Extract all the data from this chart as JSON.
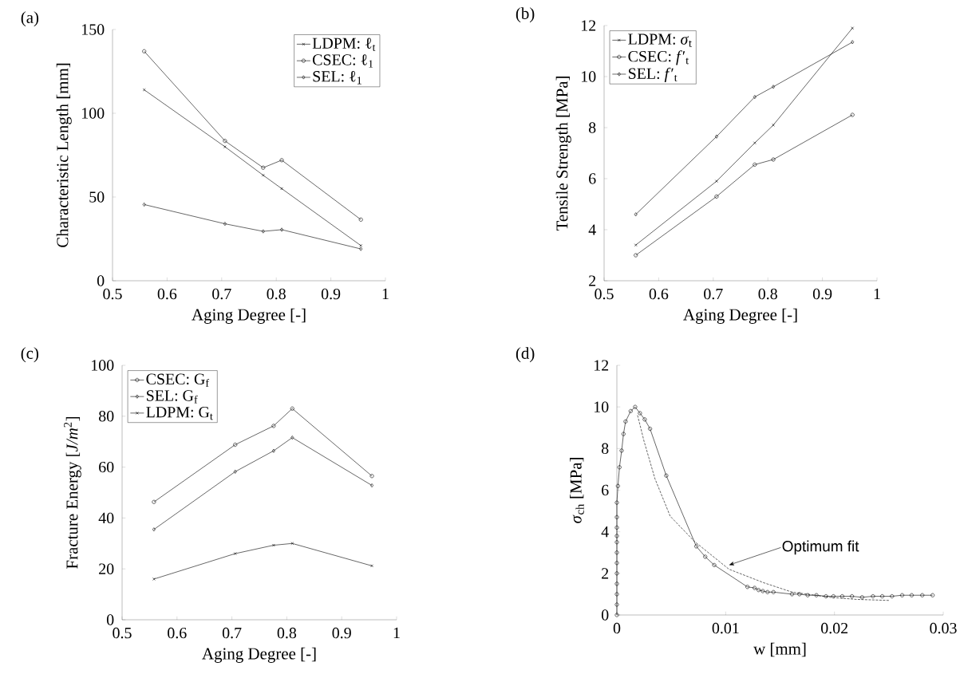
{
  "chart_data": [
    {
      "type": "line",
      "title": "(a)",
      "xlabel": "Aging Degree [-]",
      "ylabel": "Characteristic Length [mm]",
      "x": [
        0.558,
        0.706,
        0.776,
        0.81,
        0.955
      ],
      "xlim": [
        0.5,
        1
      ],
      "xticks": [
        0.5,
        0.6,
        0.7,
        0.8,
        0.9,
        1
      ],
      "ylim": [
        0,
        150
      ],
      "yticks": [
        0,
        50,
        100,
        150
      ],
      "legend": "top right",
      "line_style": "solid",
      "series": [
        {
          "name": "LDPM: ℓ$_{t}$",
          "color": "#000000",
          "marker": "cross",
          "values": [
            114,
            80,
            63,
            55,
            21
          ]
        },
        {
          "name": "CSEC: ℓ$_{1}$",
          "color": "#000000",
          "marker": "circle",
          "values": [
            137,
            83.5,
            67.5,
            72,
            36.5
          ]
        },
        {
          "name": "SEL: ℓ$_{1}$",
          "color": "#000000",
          "marker": "diamond",
          "values": [
            45.5,
            34,
            29.5,
            30.5,
            19
          ]
        }
      ]
    },
    {
      "type": "line",
      "title": "(b)",
      "xlabel": "Aging Degree [-]",
      "ylabel": "Tensile Strength [MPa]",
      "x": [
        0.558,
        0.706,
        0.776,
        0.81,
        0.955
      ],
      "xlim": [
        0.5,
        1
      ],
      "xticks": [
        0.5,
        0.6,
        0.7,
        0.8,
        0.9,
        1
      ],
      "ylim": [
        2,
        12
      ],
      "yticks": [
        2,
        4,
        6,
        8,
        10,
        12
      ],
      "legend": "top left",
      "line_style": "solid",
      "series": [
        {
          "name": "LDPM: *σ*$_{t}$",
          "color": "#000000",
          "marker": "cross",
          "values": [
            3.4,
            5.9,
            7.4,
            8.1,
            11.9
          ]
        },
        {
          "name": "CSEC: *f*′$_{t}$",
          "color": "#000000",
          "marker": "circle",
          "values": [
            3.0,
            5.3,
            6.55,
            6.75,
            8.5
          ]
        },
        {
          "name": "SEL: *f*′$_{t}$",
          "color": "#000000",
          "marker": "diamond",
          "values": [
            4.6,
            7.65,
            9.2,
            9.6,
            11.35
          ]
        }
      ]
    },
    {
      "type": "line",
      "title": "(c)",
      "xlabel": "Aging Degree [-]",
      "ylabel": "Fracture Energy [*J/m*$^{2}$]",
      "x": [
        0.558,
        0.706,
        0.776,
        0.81,
        0.955
      ],
      "xlim": [
        0.5,
        1
      ],
      "xticks": [
        0.5,
        0.6,
        0.7,
        0.8,
        0.9,
        1
      ],
      "ylim": [
        0,
        100
      ],
      "yticks": [
        0,
        20,
        40,
        60,
        80,
        100
      ],
      "legend": "top left",
      "line_style": "solid",
      "series": [
        {
          "name": "CSEC: G$_{f}$",
          "color": "#000000",
          "marker": "circle",
          "values": [
            46.3,
            68.8,
            76.2,
            83,
            56.5
          ]
        },
        {
          "name": "SEL: G$_{f}$",
          "color": "#000000",
          "marker": "diamond",
          "values": [
            35.5,
            58.2,
            66.4,
            71.6,
            52.8
          ]
        },
        {
          "name": "LDPM: G$_{t}$",
          "color": "#000000",
          "marker": "cross",
          "values": [
            16,
            26,
            29.3,
            30,
            21.2
          ]
        }
      ]
    },
    {
      "type": "line",
      "title": "(d)",
      "xlabel": "w [mm]",
      "ylabel": "*σ*$_{ch}$  [MPa]",
      "xlim": [
        0,
        0.03
      ],
      "xticks": [
        0,
        0.01,
        0.02,
        0.03
      ],
      "ylim": [
        0,
        12
      ],
      "yticks": [
        0,
        2,
        4,
        6,
        8,
        10,
        12
      ],
      "annotations": [
        {
          "text": "Optimum fit",
          "x": 0.0103,
          "y": 2.4
        }
      ],
      "series": [
        {
          "color": "#000000",
          "marker": "circle",
          "line_style": "solid",
          "x": [
            0,
            0,
            0,
            0,
            0,
            0,
            0,
            0,
            0,
            0,
            0,
            0,
            0.0001,
            0.00024,
            0.00044,
            0.00061,
            0.0008,
            0.00127,
            0.00168,
            0.00212,
            0.00256,
            0.00305,
            0.00454,
            0.0073,
            0.00812,
            0.00895,
            0.012,
            0.01266,
            0.01302,
            0.01341,
            0.01385,
            0.01439,
            0.0161,
            0.01678,
            0.01754,
            0.01834,
            0.01922,
            0.0199,
            0.02071,
            0.02161,
            0.02254,
            0.02354,
            0.02439,
            0.02529,
            0.02622,
            0.0271,
            0.02807,
            0.02902
          ],
          "values": [
            0,
            0.5,
            1,
            1.5,
            2,
            2.5,
            3,
            3.5,
            3.8,
            4.2,
            4.7,
            5.4,
            6.2,
            7.1,
            7.9,
            8.7,
            9.3,
            9.8,
            10,
            9.7,
            9.4,
            8.95,
            6.7,
            3.3,
            2.8,
            2.4,
            1.35,
            1.3,
            1.2,
            1.15,
            1.1,
            1.1,
            1,
            1,
            0.95,
            0.95,
            0.9,
            0.9,
            0.9,
            0.9,
            0.85,
            0.9,
            0.9,
            0.9,
            0.95,
            0.95,
            0.95,
            0.95
          ]
        },
        {
          "color": "#000000",
          "marker": "none",
          "line_style": "dashed",
          "x": [
            0.0019,
            0.0025,
            0.0035,
            0.0049,
            0.0071,
            0.0103,
            0.0135,
            0.0161,
            0.0196,
            0.022,
            0.025
          ],
          "values": [
            9.6,
            8.35,
            6.55,
            4.75,
            3.55,
            2.2,
            1.55,
            1.1,
            0.85,
            0.75,
            0.7
          ]
        }
      ]
    }
  ]
}
